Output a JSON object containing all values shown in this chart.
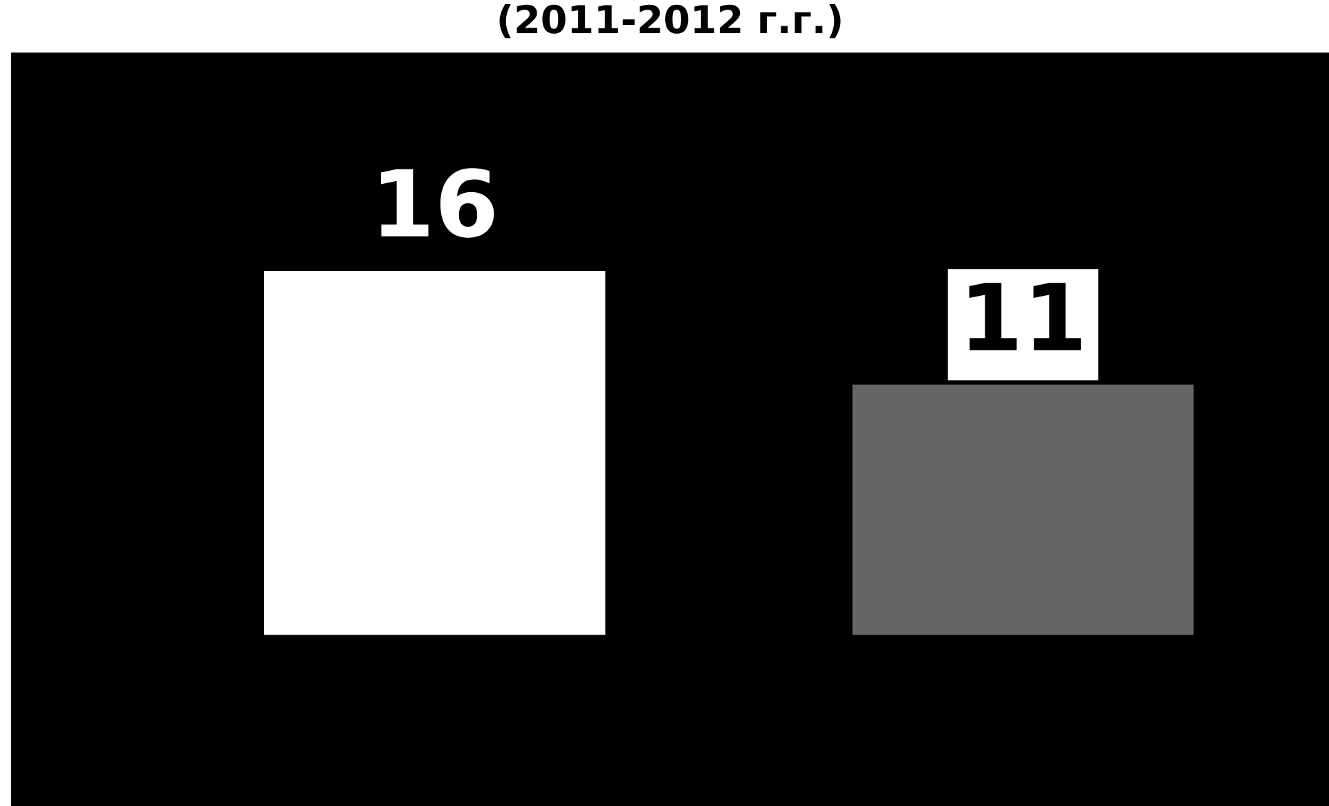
{
  "chart_data": {
    "type": "bar",
    "title": "(2011-2012 г.г.)",
    "categories": [
      null,
      null
    ],
    "values": [
      16,
      11
    ],
    "colors": [
      "#ffffff",
      "#666666"
    ],
    "data_labels": true,
    "grid": false,
    "legend": false
  }
}
